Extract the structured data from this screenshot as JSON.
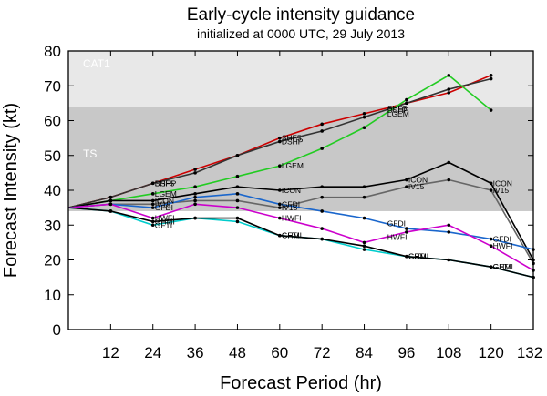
{
  "chart_data": {
    "type": "line",
    "title": "Early-cycle intensity guidance",
    "subtitle": "initialized at 0000 UTC, 29 July 2013",
    "xlabel": "Forecast Period (hr)",
    "ylabel": "Forecast Intensity (kt)",
    "xlim": [
      0,
      132
    ],
    "ylim": [
      0,
      80
    ],
    "xticks": [
      12,
      24,
      36,
      48,
      60,
      72,
      84,
      96,
      108,
      120,
      132
    ],
    "yticks": [
      0,
      10,
      20,
      30,
      40,
      50,
      60,
      70,
      80
    ],
    "grid": false,
    "bands": [
      {
        "label": "",
        "y0": 0,
        "y1": 34,
        "color": "#ffffff"
      },
      {
        "label": "TS",
        "y0": 34,
        "y1": 64,
        "color": "#c8c8c8"
      },
      {
        "label": "CAT1",
        "y0": 64,
        "y1": 80,
        "color": "#e8e8e8"
      }
    ],
    "series": [
      {
        "name": "SHF5",
        "color": "#cc0000",
        "x": [
          0,
          12,
          24,
          36,
          48,
          60,
          72,
          84,
          96,
          108,
          120
        ],
        "y": [
          35,
          38,
          42,
          46,
          50,
          55,
          59,
          62,
          65,
          68,
          73
        ],
        "labels": [
          [
            24,
            "SHF5"
          ],
          [
            60,
            "SHF5"
          ],
          [
            90,
            "SHF5"
          ]
        ]
      },
      {
        "name": "DSHP",
        "color": "#333333",
        "x": [
          0,
          12,
          24,
          36,
          48,
          60,
          72,
          84,
          96,
          108,
          120
        ],
        "y": [
          35,
          38,
          42,
          45,
          50,
          54,
          57,
          61,
          65,
          69,
          72
        ],
        "labels": [
          [
            24,
            "DSHP"
          ],
          [
            60,
            "DSHP"
          ],
          [
            90,
            "DSHP"
          ]
        ]
      },
      {
        "name": "LGEM",
        "color": "#22cc22",
        "x": [
          0,
          12,
          24,
          36,
          48,
          60,
          72,
          84,
          96,
          108,
          120
        ],
        "y": [
          35,
          37,
          39,
          41,
          44,
          47,
          52,
          58,
          66,
          73,
          63
        ],
        "labels": [
          [
            24,
            "LGEM"
          ],
          [
            60,
            "LGEM"
          ],
          [
            90,
            "LGEM"
          ]
        ]
      },
      {
        "name": "ICON",
        "color": "#000000",
        "x": [
          0,
          12,
          24,
          36,
          48,
          60,
          72,
          84,
          96,
          108,
          120,
          132
        ],
        "y": [
          35,
          37,
          37,
          39,
          41,
          40,
          41,
          41,
          43,
          48,
          42,
          20
        ],
        "labels": [
          [
            24,
            "ICON"
          ],
          [
            60,
            "ICON"
          ],
          [
            96,
            "ICON"
          ],
          [
            120,
            "ICON"
          ]
        ]
      },
      {
        "name": "IV15",
        "color": "#666666",
        "x": [
          0,
          12,
          24,
          36,
          48,
          60,
          72,
          84,
          96,
          108,
          120,
          132
        ],
        "y": [
          35,
          36,
          36,
          37,
          37,
          35,
          38,
          38,
          41,
          43,
          40,
          19
        ],
        "labels": [
          [
            24,
            "IV15"
          ],
          [
            60,
            "IV15"
          ],
          [
            96,
            "IV15"
          ],
          [
            120,
            "IV15"
          ]
        ]
      },
      {
        "name": "GFDI",
        "color": "#1a66cc",
        "x": [
          0,
          12,
          24,
          36,
          48,
          60,
          72,
          84,
          96,
          108,
          120,
          132
        ],
        "y": [
          35,
          36,
          35,
          38,
          39,
          36,
          34,
          32,
          29,
          28,
          26,
          23
        ],
        "labels": [
          [
            24,
            "GFDI"
          ],
          [
            60,
            "GFDI"
          ],
          [
            90,
            "GFDI"
          ],
          [
            120,
            "GFDI"
          ]
        ]
      },
      {
        "name": "HWFI",
        "color": "#cc00cc",
        "x": [
          0,
          12,
          24,
          36,
          48,
          60,
          72,
          84,
          96,
          108,
          120,
          132
        ],
        "y": [
          35,
          36,
          32,
          36,
          35,
          32,
          29,
          25,
          28,
          30,
          24,
          17
        ],
        "labels": [
          [
            24,
            "HWFI"
          ],
          [
            60,
            "HWFI"
          ],
          [
            90,
            "HWFI"
          ],
          [
            120,
            "HWFI"
          ]
        ]
      },
      {
        "name": "GFTI",
        "color": "#00cccc",
        "x": [
          0,
          12,
          24,
          36,
          48,
          60,
          72,
          84,
          96,
          108,
          120,
          132
        ],
        "y": [
          35,
          34,
          30,
          32,
          31,
          27,
          26,
          23,
          21,
          20,
          18,
          15
        ],
        "labels": [
          [
            24,
            "GFTI"
          ],
          [
            60,
            "GFTI"
          ],
          [
            96,
            "GFTI"
          ],
          [
            120,
            "GFTI"
          ]
        ]
      },
      {
        "name": "GHMI",
        "color": "#000000",
        "x": [
          0,
          12,
          24,
          36,
          48,
          60,
          72,
          84,
          96,
          108,
          120,
          132
        ],
        "y": [
          35,
          34,
          31,
          32,
          32,
          27,
          26,
          24,
          21,
          20,
          18,
          15
        ],
        "labels": [
          [
            24,
            "GHMI"
          ],
          [
            60,
            "GHMI"
          ],
          [
            96,
            "GHMI"
          ],
          [
            120,
            "GHMI"
          ]
        ]
      }
    ]
  }
}
